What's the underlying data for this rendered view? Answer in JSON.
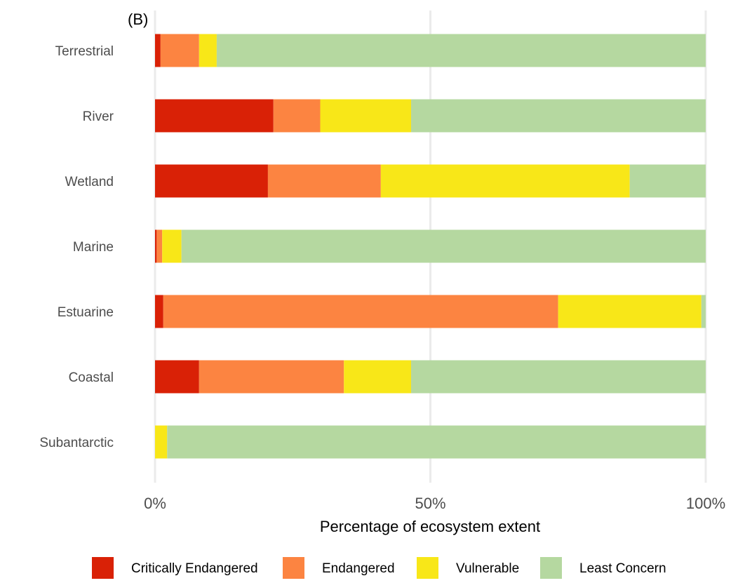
{
  "panel_label": "(B)",
  "chart_data": {
    "type": "bar",
    "orientation": "horizontal",
    "stacked": true,
    "categories": [
      "Terrestrial",
      "River",
      "Wetland",
      "Marine",
      "Estuarine",
      "Coastal",
      "Subantarctic"
    ],
    "series": [
      {
        "name": "Critically Endangered",
        "color": "#d92106",
        "values": [
          1.0,
          21.5,
          20.5,
          0.3,
          1.5,
          8.0,
          0.0
        ]
      },
      {
        "name": "Endangered",
        "color": "#fc8441",
        "values": [
          7.0,
          8.5,
          20.5,
          1.0,
          71.7,
          26.3,
          0.0
        ]
      },
      {
        "name": "Vulnerable",
        "color": "#f8e718",
        "values": [
          3.2,
          16.5,
          45.2,
          3.5,
          26.0,
          12.2,
          2.2
        ]
      },
      {
        "name": "Least Concern",
        "color": "#b5d8a0",
        "values": [
          88.8,
          53.5,
          13.8,
          95.2,
          0.8,
          53.5,
          97.8
        ]
      }
    ],
    "xlim": [
      0,
      100
    ],
    "x_ticks": [
      "0%",
      "50%",
      "100%"
    ],
    "x_tick_values": [
      0,
      50,
      100
    ],
    "xlabel": "Percentage of ecosystem extent",
    "ylabel": "",
    "grid": true,
    "legend_position": "bottom"
  }
}
